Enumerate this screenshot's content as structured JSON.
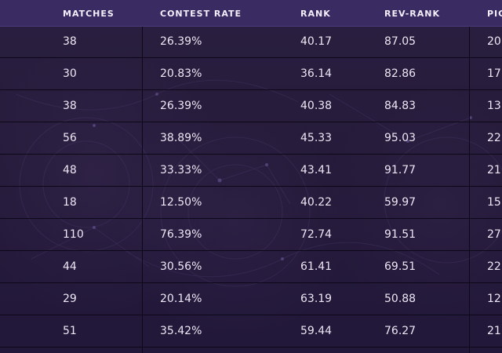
{
  "table": {
    "columns": [
      "MATCHES",
      "CONTEST RATE",
      "RANK",
      "REV-RANK",
      "PIC"
    ],
    "rows": [
      [
        "38",
        "26.39%",
        "40.17",
        "87.05",
        "20"
      ],
      [
        "30",
        "20.83%",
        "36.14",
        "82.86",
        "17"
      ],
      [
        "38",
        "26.39%",
        "40.38",
        "84.83",
        "13"
      ],
      [
        "56",
        "38.89%",
        "45.33",
        "95.03",
        "22"
      ],
      [
        "48",
        "33.33%",
        "43.41",
        "91.77",
        "21"
      ],
      [
        "18",
        "12.50%",
        "40.22",
        "59.97",
        "15"
      ],
      [
        "110",
        "76.39%",
        "72.74",
        "91.51",
        "27"
      ],
      [
        "44",
        "30.56%",
        "61.41",
        "69.51",
        "22"
      ],
      [
        "29",
        "20.14%",
        "63.19",
        "50.88",
        "12"
      ],
      [
        "51",
        "35.42%",
        "59.44",
        "76.27",
        "21"
      ]
    ]
  },
  "colors": {
    "background": "#241a38",
    "header": "#3a2c63",
    "divider": "#0d0818",
    "text": "#ece7f3"
  }
}
